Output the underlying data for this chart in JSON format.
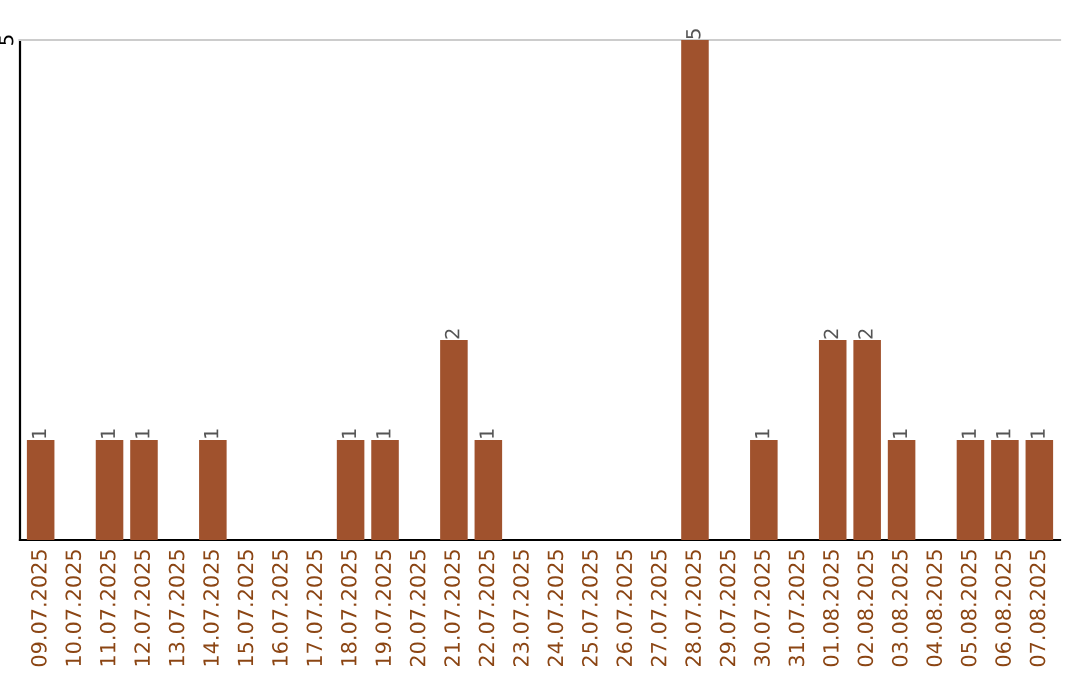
{
  "chart_data": {
    "type": "bar",
    "categories": [
      "09.07.2025",
      "10.07.2025",
      "11.07.2025",
      "12.07.2025",
      "13.07.2025",
      "14.07.2025",
      "15.07.2025",
      "16.07.2025",
      "17.07.2025",
      "18.07.2025",
      "19.07.2025",
      "20.07.2025",
      "21.07.2025",
      "22.07.2025",
      "23.07.2025",
      "24.07.2025",
      "25.07.2025",
      "26.07.2025",
      "27.07.2025",
      "28.07.2025",
      "29.07.2025",
      "30.07.2025",
      "31.07.2025",
      "01.08.2025",
      "02.08.2025",
      "03.08.2025",
      "04.08.2025",
      "05.08.2025",
      "06.08.2025",
      "07.08.2025"
    ],
    "values": [
      1,
      0,
      1,
      1,
      0,
      1,
      0,
      0,
      0,
      1,
      1,
      0,
      2,
      1,
      0,
      0,
      0,
      0,
      0,
      5,
      0,
      1,
      0,
      2,
      2,
      1,
      0,
      1,
      1,
      1
    ],
    "value_labels": [
      "1",
      null,
      "1",
      "1",
      null,
      "1",
      null,
      null,
      null,
      "1",
      "1",
      null,
      "2",
      "1",
      null,
      null,
      null,
      null,
      null,
      "5",
      null,
      "1",
      null,
      "2",
      "2",
      "1",
      null,
      "1",
      "1",
      "1"
    ],
    "color": "#a0522d",
    "ylim": [
      0,
      5
    ],
    "yticks": [
      5
    ],
    "legend": false
  }
}
